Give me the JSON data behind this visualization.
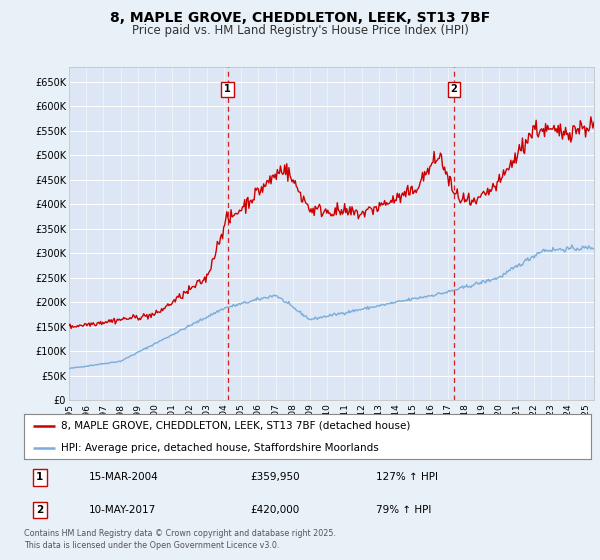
{
  "title": "8, MAPLE GROVE, CHEDDLETON, LEEK, ST13 7BF",
  "subtitle": "Price paid vs. HM Land Registry's House Price Index (HPI)",
  "title_fontsize": 10,
  "subtitle_fontsize": 8.5,
  "background_color": "#e8f0f8",
  "plot_bg_color": "#dce6f4",
  "ylim": [
    0,
    680000
  ],
  "ytick_labels": [
    "£0",
    "£50K",
    "£100K",
    "£150K",
    "£200K",
    "£250K",
    "£300K",
    "£350K",
    "£400K",
    "£450K",
    "£500K",
    "£550K",
    "£600K",
    "£650K"
  ],
  "ytick_values": [
    0,
    50000,
    100000,
    150000,
    200000,
    250000,
    300000,
    350000,
    400000,
    450000,
    500000,
    550000,
    600000,
    650000
  ],
  "house_color": "#cc0000",
  "hpi_color": "#7aaddb",
  "vline_color": "#cc0000",
  "annotation1": {
    "label": "1",
    "date": "15-MAR-2004",
    "price": "£359,950",
    "hpi": "127% ↑ HPI"
  },
  "annotation2": {
    "label": "2",
    "date": "10-MAY-2017",
    "price": "£420,000",
    "hpi": "79% ↑ HPI"
  },
  "legend_house": "8, MAPLE GROVE, CHEDDLETON, LEEK, ST13 7BF (detached house)",
  "legend_hpi": "HPI: Average price, detached house, Staffordshire Moorlands",
  "footer": "Contains HM Land Registry data © Crown copyright and database right 2025.\nThis data is licensed under the Open Government Licence v3.0.",
  "sale1_year": 2004.21,
  "sale2_year": 2017.36,
  "xmin": 1995,
  "xmax": 2025.5
}
